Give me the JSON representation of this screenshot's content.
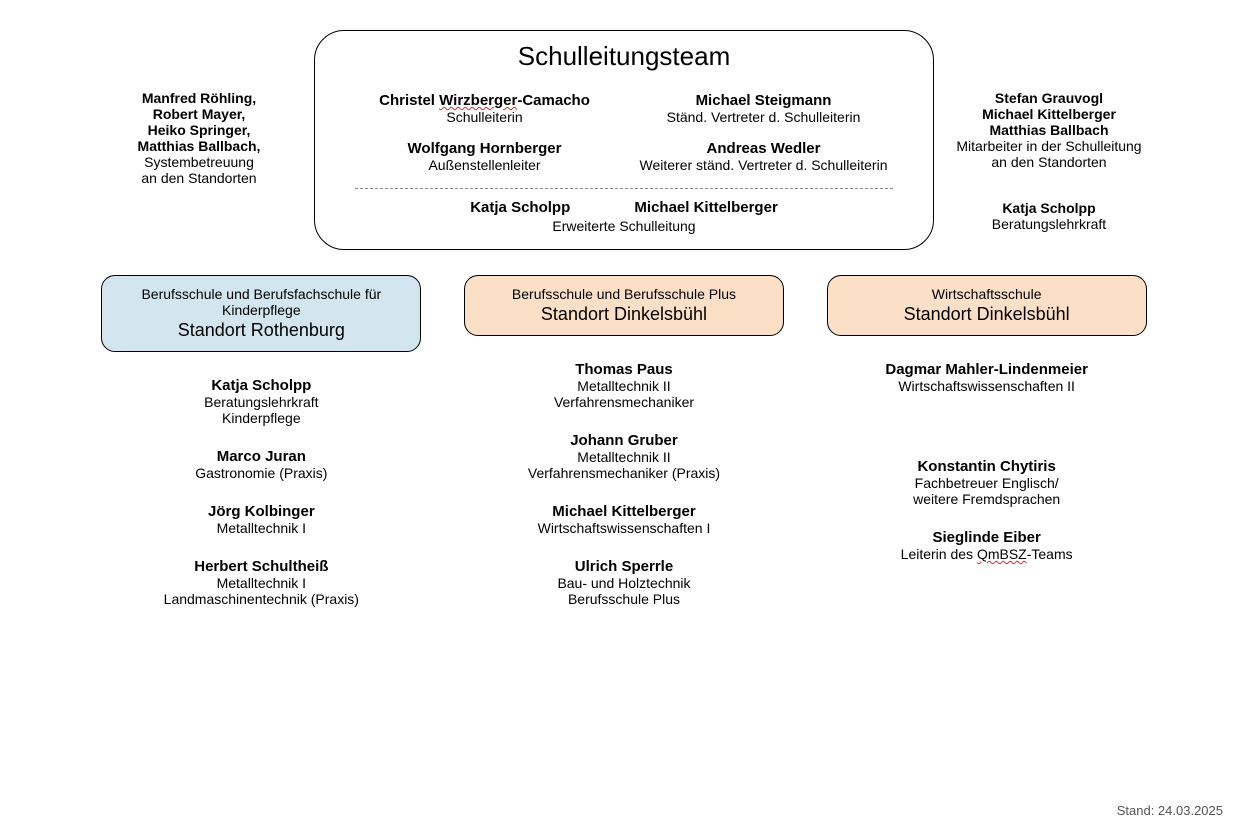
{
  "main": {
    "title": "Schulleitungsteam",
    "row1": [
      {
        "name": "Christel ",
        "name_ul": "Wirzberger",
        "name_suffix": "-Camacho",
        "role": "Schulleiterin"
      },
      {
        "name": "Michael Steigmann",
        "role": "Ständ. Vertreter d. Schulleiterin"
      }
    ],
    "row2": [
      {
        "name": "Wolfgang Hornberger",
        "role": "Außenstellenleiter"
      },
      {
        "name": "Andreas Wedler",
        "role": "Weiterer ständ. Vertreter d. Schulleiterin"
      }
    ],
    "ext": {
      "name1": "Katja Scholpp",
      "name2": "Michael Kittelberger",
      "role": "Erweiterte Schulleitung"
    }
  },
  "left": {
    "lines_bold": [
      "Manfred Röhling,",
      "Robert Mayer,",
      "Heiko Springer,",
      "Matthias Ballbach,"
    ],
    "lines_plain": [
      "Systembetreuung",
      "an den Standorten"
    ]
  },
  "right": {
    "group1_bold": [
      "Stefan Grauvogl",
      "Michael Kittelberger",
      "Matthias Ballbach"
    ],
    "group1_plain": [
      "Mitarbeiter in der Schulleitung",
      "an den Standorten"
    ],
    "group2_bold": [
      "Katja Scholpp"
    ],
    "group2_plain": [
      "Beratungslehrkraft"
    ]
  },
  "columns": [
    {
      "color_class": "col-blue",
      "header_sub": "Berufsschule und Berufsfachschule für Kinderpflege",
      "header_main": "Standort Rothenburg",
      "people": [
        {
          "name": "Katja Scholpp",
          "role": "Beratungslehrkraft\nKinderpflege"
        },
        {
          "name": "Marco Juran",
          "role": "Gastronomie (Praxis)"
        },
        {
          "name": "Jörg Kolbinger",
          "role": "Metalltechnik I"
        },
        {
          "name": "Herbert Schultheiß",
          "role": "Metalltechnik I\nLandmaschinentechnik (Praxis)"
        }
      ]
    },
    {
      "color_class": "col-orange",
      "header_sub": "Berufsschule und Berufsschule Plus",
      "header_main": "Standort Dinkelsbühl",
      "people": [
        {
          "name": "Thomas Paus",
          "role": "Metalltechnik II\nVerfahrensmechaniker"
        },
        {
          "name": "Johann Gruber",
          "role": "Metalltechnik II\nVerfahrensmechaniker (Praxis)"
        },
        {
          "name": "Michael Kittelberger",
          "role": "Wirtschaftswissenschaften I"
        },
        {
          "name": "Ulrich Sperrle",
          "role": "Bau- und Holztechnik\nBerufsschule Plus"
        }
      ]
    },
    {
      "color_class": "col-orange",
      "header_sub": "Wirtschaftsschule",
      "header_main": "Standort Dinkelsbühl",
      "people": [
        {
          "name": "Dagmar Mahler-Lindenmeier",
          "role": "Wirtschaftswissenschaften II"
        },
        {
          "spacer": true
        },
        {
          "name": "Konstantin Chytiris",
          "role": "Fachbetreuer Englisch/\nweitere Fremdsprachen"
        },
        {
          "name": "Sieglinde Eiber",
          "role_pre": "Leiterin des ",
          "role_ul": "QmBSZ",
          "role_post": "-Teams"
        }
      ]
    }
  ],
  "footer": "Stand: 24.03.2025",
  "colors": {
    "blue": "#d3e5ef",
    "orange": "#fbdfc7",
    "border": "#000000",
    "background": "#ffffff",
    "spell": "#d32f2f"
  }
}
